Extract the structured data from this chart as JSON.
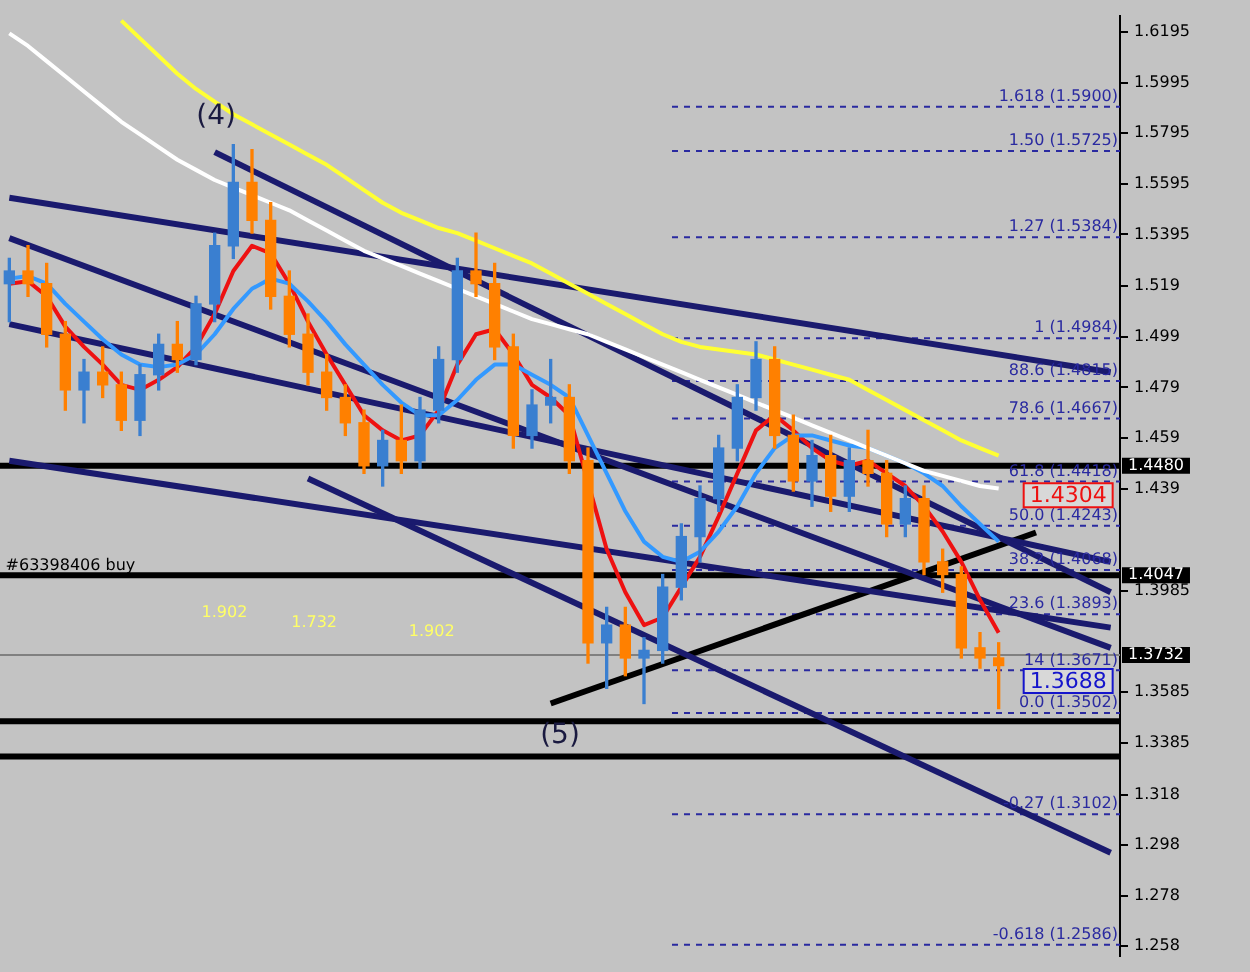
{
  "chart_data": {
    "type": "candlestick",
    "categories": [
      null,
      null,
      null,
      null,
      null,
      null,
      null,
      null,
      null,
      null,
      null,
      null,
      null,
      null,
      null,
      null,
      null,
      null,
      null,
      null,
      null,
      null,
      null,
      null,
      null,
      null,
      null,
      null,
      null,
      null,
      null,
      null,
      null,
      null,
      null,
      null,
      null,
      null,
      null,
      null,
      null,
      null,
      null,
      null,
      null,
      null,
      null,
      null,
      null,
      null,
      null,
      null,
      null,
      null,
      null,
      null,
      null,
      null,
      null,
      null
    ],
    "ohlc": [
      [
        1.52,
        1.53,
        1.505,
        1.525
      ],
      [
        1.525,
        1.535,
        1.515,
        1.52
      ],
      [
        1.52,
        1.528,
        1.495,
        1.5
      ],
      [
        1.5,
        1.505,
        1.47,
        1.478
      ],
      [
        1.478,
        1.49,
        1.465,
        1.485
      ],
      [
        1.485,
        1.495,
        1.475,
        1.48
      ],
      [
        1.48,
        1.485,
        1.462,
        1.466
      ],
      [
        1.466,
        1.488,
        1.46,
        1.484
      ],
      [
        1.484,
        1.5,
        1.478,
        1.496
      ],
      [
        1.496,
        1.505,
        1.485,
        1.49
      ],
      [
        1.49,
        1.515,
        1.488,
        1.512
      ],
      [
        1.512,
        1.54,
        1.505,
        1.535
      ],
      [
        1.535,
        1.575,
        1.53,
        1.56
      ],
      [
        1.56,
        1.573,
        1.54,
        1.545
      ],
      [
        1.545,
        1.552,
        1.51,
        1.515
      ],
      [
        1.515,
        1.525,
        1.495,
        1.5
      ],
      [
        1.5,
        1.508,
        1.48,
        1.485
      ],
      [
        1.485,
        1.492,
        1.47,
        1.475
      ],
      [
        1.475,
        1.48,
        1.46,
        1.465
      ],
      [
        1.465,
        1.47,
        1.445,
        1.448
      ],
      [
        1.448,
        1.462,
        1.44,
        1.458
      ],
      [
        1.458,
        1.472,
        1.445,
        1.45
      ],
      [
        1.45,
        1.475,
        1.447,
        1.47
      ],
      [
        1.47,
        1.495,
        1.465,
        1.49
      ],
      [
        1.49,
        1.53,
        1.485,
        1.525
      ],
      [
        1.525,
        1.54,
        1.515,
        1.52
      ],
      [
        1.52,
        1.528,
        1.49,
        1.495
      ],
      [
        1.495,
        1.5,
        1.455,
        1.46
      ],
      [
        1.46,
        1.478,
        1.455,
        1.472
      ],
      [
        1.472,
        1.49,
        1.465,
        1.475
      ],
      [
        1.475,
        1.48,
        1.445,
        1.45
      ],
      [
        1.45,
        1.455,
        1.37,
        1.378
      ],
      [
        1.378,
        1.392,
        1.36,
        1.385
      ],
      [
        1.385,
        1.392,
        1.365,
        1.372
      ],
      [
        1.372,
        1.38,
        1.354,
        1.375
      ],
      [
        1.375,
        1.405,
        1.37,
        1.4
      ],
      [
        1.4,
        1.425,
        1.395,
        1.42
      ],
      [
        1.42,
        1.44,
        1.41,
        1.435
      ],
      [
        1.435,
        1.46,
        1.43,
        1.455
      ],
      [
        1.455,
        1.48,
        1.45,
        1.475
      ],
      [
        1.475,
        1.497,
        1.47,
        1.49
      ],
      [
        1.49,
        1.495,
        1.455,
        1.46
      ],
      [
        1.46,
        1.468,
        1.438,
        1.442
      ],
      [
        1.442,
        1.458,
        1.432,
        1.452
      ],
      [
        1.452,
        1.46,
        1.43,
        1.436
      ],
      [
        1.436,
        1.455,
        1.43,
        1.45
      ],
      [
        1.45,
        1.462,
        1.44,
        1.445
      ],
      [
        1.445,
        1.45,
        1.42,
        1.425
      ],
      [
        1.425,
        1.44,
        1.42,
        1.435
      ],
      [
        1.435,
        1.44,
        1.405,
        1.41
      ],
      [
        1.41,
        1.415,
        1.398,
        1.405
      ],
      [
        1.405,
        1.408,
        1.372,
        1.376
      ],
      [
        1.376,
        1.382,
        1.368,
        1.372
      ],
      [
        1.372,
        1.378,
        1.352,
        1.369
      ],
      null,
      null,
      null,
      null,
      null,
      null
    ],
    "series": [
      {
        "type": "line",
        "color": "#ffff33",
        "values": [
          null,
          null,
          null,
          null,
          null,
          null,
          1.624,
          1.617,
          1.61,
          1.603,
          1.597,
          1.592,
          1.587,
          1.583,
          1.579,
          1.575,
          1.571,
          1.567,
          1.562,
          1.557,
          1.552,
          1.548,
          1.545,
          1.542,
          1.54,
          1.537,
          1.534,
          1.531,
          1.528,
          1.524,
          1.52,
          1.516,
          1.512,
          1.508,
          1.504,
          1.5,
          1.497,
          1.495,
          1.494,
          1.493,
          1.492,
          1.49,
          1.488,
          1.486,
          1.484,
          1.482,
          1.478,
          1.474,
          1.47,
          1.466,
          1.462,
          1.458,
          1.455,
          1.452,
          null,
          null,
          null,
          null,
          null,
          null
        ]
      },
      {
        "type": "line",
        "color": "#ffffff",
        "values": [
          1.619,
          1.614,
          1.608,
          1.602,
          1.596,
          1.59,
          1.584,
          1.579,
          1.574,
          1.569,
          1.565,
          1.561,
          1.558,
          1.555,
          1.552,
          1.549,
          1.545,
          1.541,
          1.537,
          1.533,
          1.53,
          1.527,
          1.524,
          1.521,
          1.518,
          1.515,
          1.512,
          1.509,
          1.506,
          1.504,
          1.502,
          1.5,
          1.497,
          1.494,
          1.491,
          1.488,
          1.485,
          1.482,
          1.479,
          1.476,
          1.473,
          1.47,
          1.467,
          1.464,
          1.461,
          1.458,
          1.455,
          1.452,
          1.449,
          1.446,
          1.444,
          1.442,
          1.44,
          1.439,
          null,
          null,
          null,
          null,
          null,
          null
        ]
      },
      {
        "type": "line",
        "color": "#3399ff",
        "values": [
          1.522,
          1.523,
          1.52,
          1.512,
          1.505,
          1.498,
          1.492,
          1.488,
          1.487,
          1.488,
          1.492,
          1.5,
          1.51,
          1.518,
          1.522,
          1.52,
          1.513,
          1.505,
          1.496,
          1.488,
          1.48,
          1.473,
          1.468,
          1.468,
          1.474,
          1.482,
          1.488,
          1.488,
          1.484,
          1.48,
          1.475,
          1.46,
          1.445,
          1.43,
          1.418,
          1.412,
          1.41,
          1.414,
          1.422,
          1.432,
          1.445,
          1.455,
          1.46,
          1.46,
          1.458,
          1.456,
          1.455,
          1.452,
          1.449,
          1.445,
          1.44,
          1.432,
          1.425,
          1.418,
          null,
          null,
          null,
          null,
          null,
          null
        ]
      },
      {
        "type": "line",
        "color": "#ee1111",
        "values": [
          1.52,
          1.521,
          1.515,
          1.503,
          1.495,
          1.488,
          1.48,
          1.478,
          1.482,
          1.487,
          1.495,
          1.508,
          1.525,
          1.535,
          1.532,
          1.52,
          1.505,
          1.492,
          1.48,
          1.468,
          1.462,
          1.458,
          1.46,
          1.47,
          1.488,
          1.5,
          1.502,
          1.492,
          1.48,
          1.475,
          1.468,
          null,
          1.415,
          1.398,
          1.385,
          1.388,
          1.4,
          1.412,
          1.428,
          1.445,
          1.462,
          1.468,
          1.462,
          1.455,
          1.45,
          1.448,
          1.45,
          1.445,
          1.44,
          1.432,
          1.422,
          1.41,
          1.395,
          1.382,
          null,
          null,
          null,
          null,
          null,
          null
        ]
      },
      {
        "type": "line",
        "color": "#1a1a6e",
        "values": [
          1.554,
          null,
          null,
          null,
          null,
          null,
          null,
          null,
          null,
          null,
          null,
          null,
          null,
          null,
          null,
          null,
          null,
          null,
          null,
          null,
          null,
          null,
          null,
          null,
          null,
          null,
          null,
          null,
          null,
          null,
          null,
          null,
          null,
          null,
          null,
          null,
          null,
          null,
          null,
          null,
          null,
          null,
          null,
          null,
          null,
          null,
          null,
          null,
          null,
          null,
          null,
          null,
          null,
          null,
          null,
          null,
          null,
          null,
          null,
          1.485
        ]
      },
      {
        "type": "line",
        "color": "#1a1a6e",
        "values": [
          null,
          null,
          null,
          null,
          null,
          null,
          null,
          null,
          null,
          null,
          null,
          1.572,
          null,
          null,
          null,
          null,
          null,
          null,
          null,
          null,
          null,
          null,
          null,
          null,
          null,
          null,
          null,
          null,
          null,
          null,
          null,
          null,
          null,
          null,
          null,
          null,
          null,
          null,
          null,
          null,
          null,
          null,
          null,
          null,
          null,
          null,
          null,
          null,
          null,
          null,
          null,
          null,
          null,
          null,
          null,
          null,
          null,
          null,
          null,
          1.398
        ]
      },
      {
        "type": "line",
        "color": "#1a1a6e",
        "values": [
          1.538,
          null,
          null,
          null,
          null,
          null,
          null,
          null,
          null,
          null,
          null,
          null,
          null,
          null,
          null,
          null,
          null,
          null,
          null,
          null,
          null,
          null,
          null,
          null,
          null,
          null,
          null,
          null,
          null,
          null,
          null,
          null,
          null,
          null,
          null,
          null,
          null,
          null,
          null,
          null,
          null,
          null,
          null,
          null,
          null,
          null,
          null,
          null,
          null,
          null,
          null,
          null,
          null,
          null,
          null,
          null,
          null,
          null,
          null,
          1.376
        ]
      },
      {
        "type": "line",
        "color": "#1a1a6e",
        "values": [
          1.504,
          null,
          null,
          null,
          null,
          null,
          null,
          null,
          null,
          null,
          null,
          null,
          null,
          null,
          null,
          null,
          null,
          null,
          null,
          null,
          null,
          null,
          null,
          null,
          null,
          null,
          null,
          null,
          null,
          null,
          null,
          null,
          null,
          null,
          null,
          null,
          null,
          null,
          null,
          null,
          null,
          null,
          null,
          null,
          null,
          null,
          null,
          null,
          null,
          null,
          null,
          null,
          null,
          null,
          null,
          null,
          null,
          null,
          null,
          1.41
        ]
      },
      {
        "type": "line",
        "color": "#1a1a6e",
        "values": [
          1.45,
          null,
          null,
          null,
          null,
          null,
          null,
          null,
          null,
          null,
          null,
          null,
          null,
          null,
          null,
          null,
          null,
          null,
          null,
          null,
          null,
          null,
          null,
          null,
          null,
          null,
          null,
          null,
          null,
          null,
          null,
          null,
          null,
          null,
          null,
          null,
          null,
          null,
          null,
          null,
          null,
          null,
          null,
          null,
          null,
          null,
          null,
          null,
          null,
          null,
          null,
          null,
          null,
          null,
          null,
          null,
          null,
          null,
          null,
          1.384
        ]
      },
      {
        "type": "line",
        "color": "#1a1a6e",
        "values": [
          null,
          null,
          null,
          null,
          null,
          null,
          null,
          null,
          null,
          null,
          null,
          null,
          null,
          null,
          null,
          null,
          1.443,
          null,
          null,
          null,
          null,
          null,
          null,
          null,
          null,
          null,
          null,
          null,
          null,
          null,
          null,
          null,
          null,
          null,
          null,
          null,
          null,
          null,
          null,
          null,
          null,
          null,
          null,
          null,
          null,
          null,
          null,
          null,
          null,
          null,
          null,
          null,
          null,
          null,
          null,
          null,
          null,
          null,
          null,
          1.295
        ]
      },
      {
        "type": "line",
        "color": "#000000",
        "values": [
          null,
          null,
          null,
          null,
          null,
          null,
          null,
          null,
          null,
          null,
          null,
          null,
          null,
          null,
          null,
          null,
          null,
          null,
          null,
          null,
          null,
          null,
          null,
          null,
          null,
          null,
          null,
          null,
          null,
          1.354,
          null,
          null,
          null,
          null,
          null,
          null,
          null,
          null,
          null,
          null,
          null,
          null,
          null,
          null,
          null,
          null,
          null,
          null,
          null,
          null,
          null,
          null,
          null,
          null,
          null,
          1.4216,
          null,
          null,
          null,
          null
        ]
      }
    ],
    "ylim": [
      1.254,
      1.626
    ],
    "yticks": [
      1.6195,
      1.5995,
      1.5795,
      1.5595,
      1.5395,
      1.519,
      1.499,
      1.479,
      1.459,
      1.439,
      1.3985,
      1.3585,
      1.3385,
      1.318,
      1.298,
      1.278,
      1.258
    ],
    "ref_lines": [
      {
        "axis": "y",
        "value": 1.59,
        "label": "1.618 (1.5900)",
        "color": "#2a2aa0",
        "line_style": "dashed"
      },
      {
        "axis": "y",
        "value": 1.5725,
        "label": "1.50 (1.5725)",
        "color": "#2a2aa0",
        "line_style": "dashed"
      },
      {
        "axis": "y",
        "value": 1.5384,
        "label": "1.27 (1.5384)",
        "color": "#2a2aa0",
        "line_style": "dashed"
      },
      {
        "axis": "y",
        "value": 1.4984,
        "label": "1 (1.4984)",
        "color": "#2a2aa0",
        "line_style": "dashed"
      },
      {
        "axis": "y",
        "value": 1.4815,
        "label": "88.6 (1.4815)",
        "color": "#2a2aa0",
        "line_style": "dashed"
      },
      {
        "axis": "y",
        "value": 1.4667,
        "label": "78.6 (1.4667)",
        "color": "#2a2aa0",
        "line_style": "dashed"
      },
      {
        "axis": "y",
        "value": 1.4418,
        "label": "61.8 (1.4418)",
        "color": "#2a2aa0",
        "line_style": "dashed"
      },
      {
        "axis": "y",
        "value": 1.4243,
        "label": "50.0 (1.4243)",
        "color": "#2a2aa0",
        "line_style": "dashed"
      },
      {
        "axis": "y",
        "value": 1.4068,
        "label": "38.2 (1.4068)",
        "color": "#2a2aa0",
        "line_style": "dashed"
      },
      {
        "axis": "y",
        "value": 1.3893,
        "label": "23.6 (1.3893)",
        "color": "#2a2aa0",
        "line_style": "dashed"
      },
      {
        "axis": "y",
        "value": 1.3671,
        "label": "14 (1.3671)",
        "color": "#2a2aa0",
        "line_style": "dashed"
      },
      {
        "axis": "y",
        "value": 1.3502,
        "label": "0.0 (1.3502)",
        "color": "#2a2aa0",
        "line_style": "dashed"
      },
      {
        "axis": "y",
        "value": 1.3102,
        "label": "-0.27 (1.3102)",
        "color": "#2a2aa0",
        "line_style": "dashed"
      },
      {
        "axis": "y",
        "value": 1.2586,
        "label": "-0.618 (1.2586)",
        "color": "#2a2aa0",
        "line_style": "dashed"
      },
      {
        "axis": "y",
        "value": 1.448,
        "label": "1.4480",
        "color": "#000000",
        "line_style": "solid"
      },
      {
        "axis": "y",
        "value": 1.4047,
        "label": "1.4047",
        "color": "#000000",
        "line_style": "solid"
      },
      {
        "axis": "y",
        "value": 1.3732,
        "label": "1.3732",
        "color": "#808080",
        "line_style": "solid"
      },
      {
        "axis": "y",
        "value": 1.347,
        "color": "#000000",
        "line_style": "solid"
      },
      {
        "axis": "y",
        "value": 1.333,
        "color": "#000000",
        "line_style": "solid"
      }
    ],
    "annotations": [
      "(4)",
      "(5)",
      "1.4304",
      "1.3688",
      "#63398406 buy",
      "1.902",
      "1.732",
      "1.902"
    ],
    "grid": false,
    "legend": false,
    "tick_labels": "y"
  }
}
